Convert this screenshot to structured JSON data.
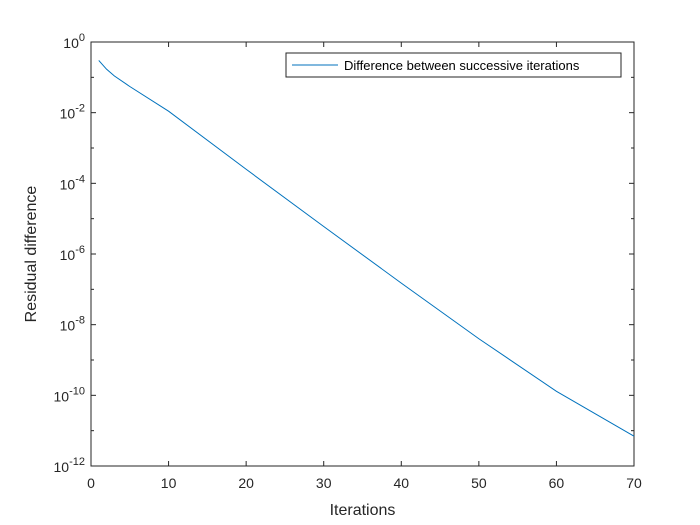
{
  "chart_data": {
    "type": "line",
    "title": "",
    "xlabel": "Iterations",
    "ylabel": "Residual difference",
    "x_scale": "linear",
    "y_scale": "log",
    "xlim": [
      0,
      70
    ],
    "ylim": [
      1e-12,
      1
    ],
    "grid": false,
    "legend_position": "top-right",
    "x_ticks": [
      0,
      10,
      20,
      30,
      40,
      50,
      60,
      70
    ],
    "y_tick_exponents": [
      0,
      -2,
      -4,
      -6,
      -8,
      -10,
      -12
    ],
    "y_tick_base": "10",
    "series": [
      {
        "name": "Difference between successive iterations",
        "color": "#0072BD",
        "x": [
          1,
          2,
          3,
          5,
          10,
          20,
          30,
          40,
          50,
          60,
          70
        ],
        "y": [
          0.3,
          0.17,
          0.11,
          0.055,
          0.011,
          0.00025,
          6e-06,
          1.5e-07,
          4e-09,
          1.3e-10,
          7e-12
        ]
      }
    ]
  }
}
